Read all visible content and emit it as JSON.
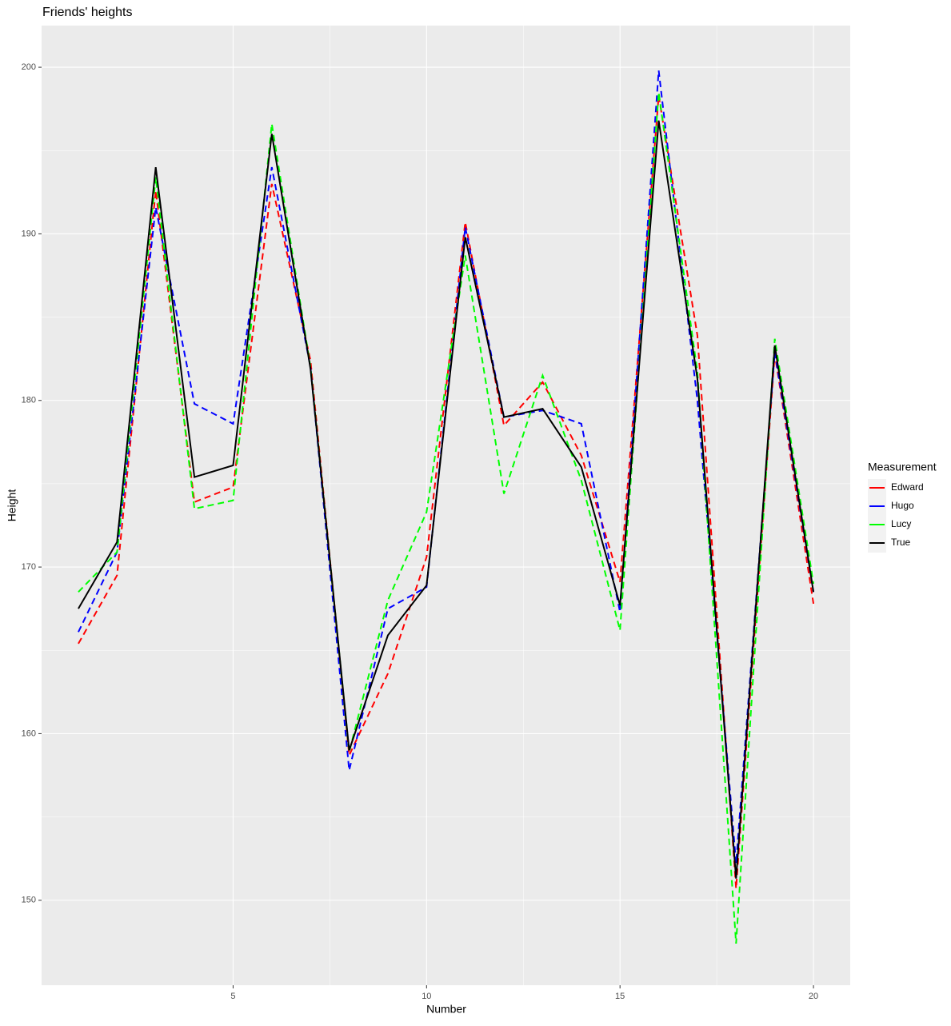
{
  "chart_data": {
    "type": "line",
    "title": "Friends' heights",
    "x_label": "Number",
    "y_label": "Height",
    "x": [
      1,
      2,
      3,
      4,
      5,
      6,
      7,
      8,
      9,
      10,
      11,
      12,
      13,
      14,
      15,
      16,
      17,
      18,
      19,
      20
    ],
    "series": [
      {
        "name": "Edward",
        "color": "#ff0000",
        "linetype": "dashed",
        "values": [
          165.4,
          169.5,
          192.6,
          173.9,
          174.8,
          193.0,
          182.4,
          158.7,
          163.6,
          170.6,
          190.7,
          178.5,
          181.1,
          176.7,
          169.1,
          198.3,
          183.9,
          150.7,
          182.8,
          167.8
        ]
      },
      {
        "name": "Hugo",
        "color": "#0000ff",
        "linetype": "dashed",
        "values": [
          166.1,
          170.9,
          191.6,
          179.8,
          178.6,
          194.0,
          182.0,
          157.8,
          167.5,
          168.8,
          190.4,
          179.0,
          179.4,
          178.6,
          167.3,
          199.8,
          180.0,
          152.2,
          182.9,
          168.5
        ]
      },
      {
        "name": "Lucy",
        "color": "#00ff00",
        "linetype": "dashed",
        "values": [
          168.5,
          170.9,
          193.4,
          173.5,
          174.0,
          196.6,
          182.0,
          158.9,
          168.0,
          173.3,
          188.7,
          174.4,
          181.5,
          175.2,
          166.2,
          198.5,
          181.7,
          147.4,
          183.7,
          169.0
        ]
      },
      {
        "name": "True",
        "color": "#000000",
        "linetype": "solid",
        "values": [
          167.5,
          171.5,
          194.0,
          175.4,
          176.1,
          196.0,
          181.9,
          159.0,
          165.9,
          168.9,
          189.8,
          179.0,
          179.5,
          176.0,
          167.7,
          196.8,
          181.3,
          151.3,
          183.3,
          168.5
        ]
      }
    ],
    "legend_title": "Measurement",
    "legend_position": "right",
    "xlim": [
      0.05,
      20.95
    ],
    "xticks": [
      5,
      10,
      15,
      20
    ],
    "ylim": [
      144.9,
      202.5
    ],
    "yticks": [
      150,
      160,
      170,
      180,
      190,
      200
    ],
    "grid": true
  }
}
